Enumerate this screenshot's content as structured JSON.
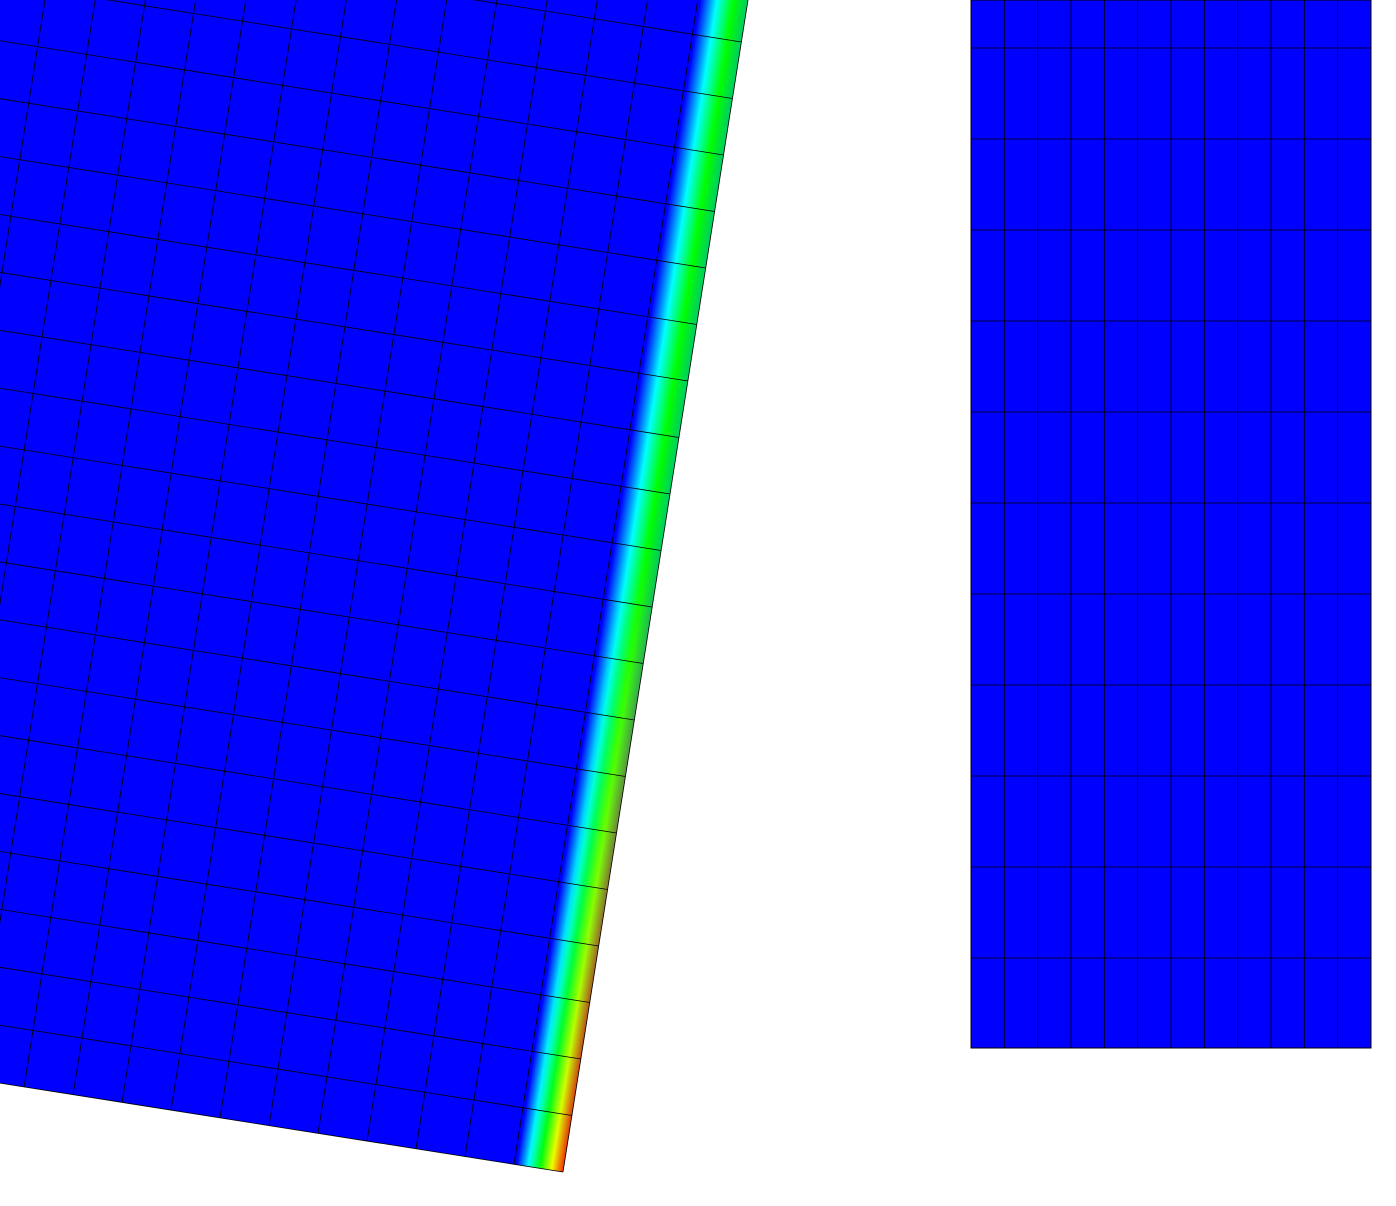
{
  "scene": {
    "description_free": true,
    "background_color": "#ffffff",
    "mesh_line_color": "#000000",
    "colormap": [
      "#0000ff",
      "#00ffff",
      "#00ff00",
      "#ffff00",
      "#ff0000"
    ],
    "deformed_mesh": {
      "fill_color": "#0000ff",
      "edge_gradient": "blue-cyan-green-yellow-red"
    },
    "reference_mesh": {
      "fill_color": "#0000ff",
      "columns": 12,
      "rows": 11
    }
  }
}
